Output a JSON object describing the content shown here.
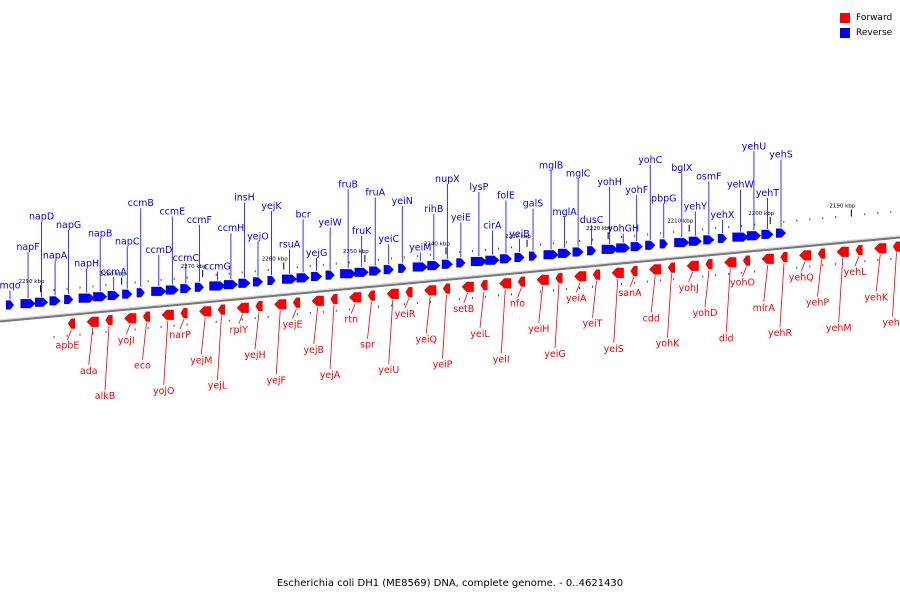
{
  "legend": {
    "forward_label": "Forward",
    "reverse_label": "Reverse",
    "forward_color": "#ff0000",
    "reverse_color": "#0000ff"
  },
  "caption": "Escherichia coli DH1 (ME8569) DNA, complete genome. - 0..4621430",
  "genome": {
    "start_kbp": 2295,
    "end_kbp": 2184,
    "ticks": [
      {
        "label": "2290 kbp",
        "kbp": 2290
      },
      {
        "label": "2280 kbp",
        "kbp": 2280
      },
      {
        "label": "2270 kbp",
        "kbp": 2270
      },
      {
        "label": "2260 kbp",
        "kbp": 2260
      },
      {
        "label": "2250 kbp",
        "kbp": 2250
      },
      {
        "label": "2240 kbp",
        "kbp": 2240
      },
      {
        "label": "2230 kbp",
        "kbp": 2230
      },
      {
        "label": "2220 kbp",
        "kbp": 2220
      },
      {
        "label": "2210 kbp",
        "kbp": 2210
      },
      {
        "label": "2200 kbp",
        "kbp": 2200
      },
      {
        "label": "2190 kbp",
        "kbp": 2190
      }
    ]
  },
  "reverse_genes": [
    "mqo",
    "napF",
    "napD",
    "napA",
    "napG",
    "napH",
    "napB",
    "ccmA",
    "napC",
    "ccmB",
    "ccmD",
    "ccmE",
    "ccmC",
    "ccmF",
    "ccmG",
    "ccmH",
    "insH",
    "yejO",
    "yejK",
    "rsuA",
    "bcr",
    "yejG",
    "yeiW",
    "fruB",
    "fruK",
    "fruA",
    "yeiC",
    "yeiN",
    "yeiM",
    "rihB",
    "nupX",
    "yeiE",
    "lysP",
    "cirA",
    "folE",
    "yeiB",
    "galS",
    "mglB",
    "mglA",
    "mglC",
    "dusC",
    "yohH",
    "yohGH",
    "yohF",
    "yohC",
    "pbpG",
    "bglX",
    "yehY",
    "osmF",
    "yehX",
    "yehW",
    "yehU",
    "yehT",
    "yehS"
  ],
  "forward_genes": [
    "apbE",
    "ada",
    "alkB",
    "yojI",
    "eco",
    "yojO",
    "narP",
    "yejM",
    "yejL",
    "rplY",
    "yejH",
    "yejF",
    "yejE",
    "yejB",
    "yejA",
    "rtn",
    "spr",
    "yeiU",
    "yeiR",
    "yeiQ",
    "yeiP",
    "setB",
    "yeiL",
    "yeiI",
    "nfo",
    "yeiH",
    "yeiG",
    "yeiA",
    "yeiT",
    "yeiS",
    "sanA",
    "cdd",
    "yohK",
    "yohJ",
    "yohD",
    "dld",
    "yohO",
    "mlrA",
    "yehR",
    "yehQ",
    "yehP",
    "yehM",
    "yehL",
    "yehK",
    "yehI"
  ]
}
